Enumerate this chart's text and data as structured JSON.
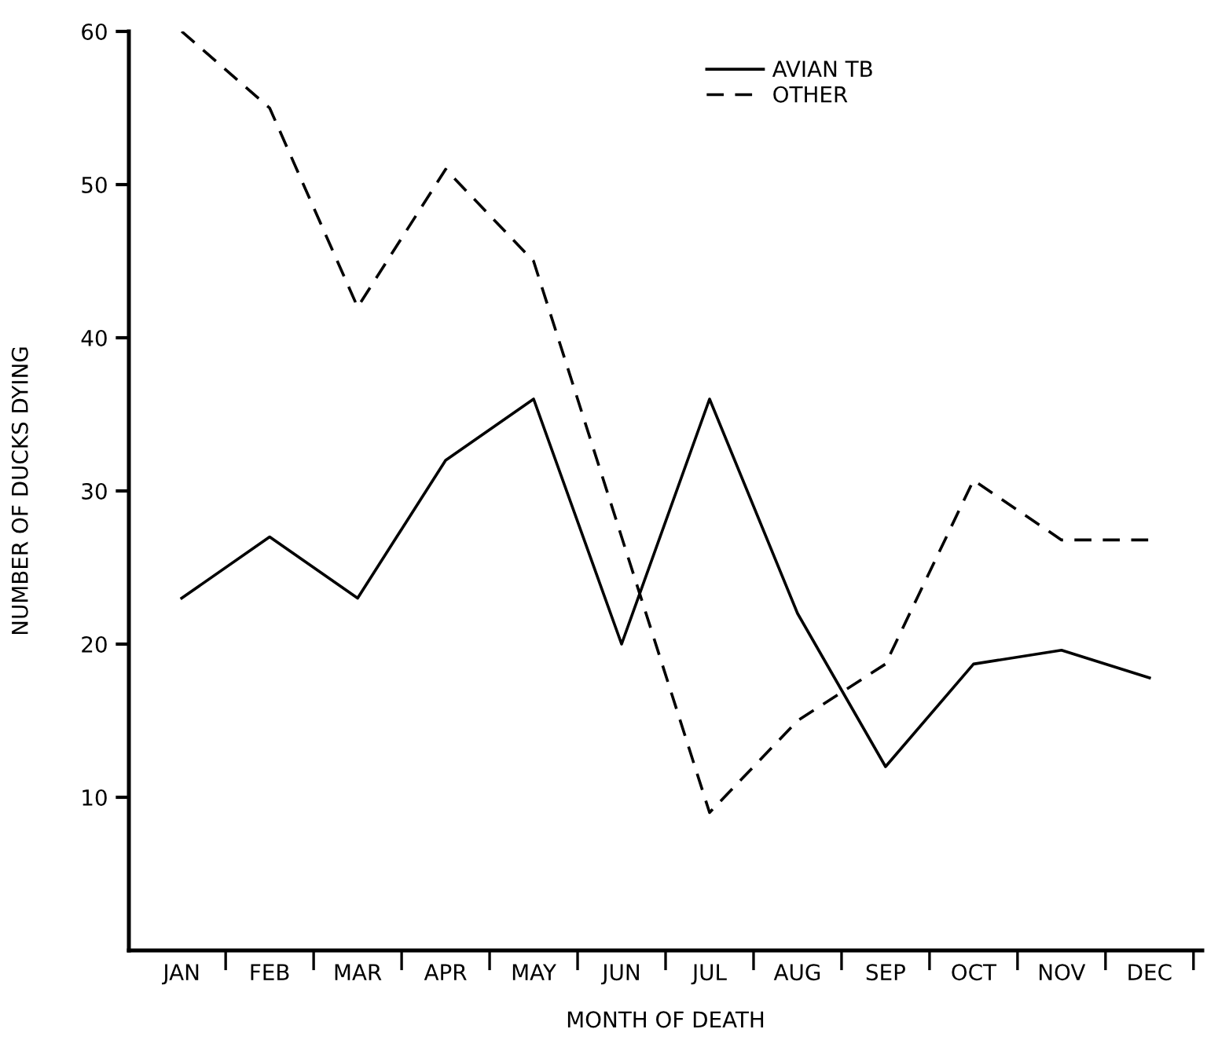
{
  "chart_data": {
    "type": "line",
    "xlabel": "MONTH OF DEATH",
    "ylabel": "NUMBER OF DUCKS DYING",
    "categories": [
      "JAN",
      "FEB",
      "MAR",
      "APR",
      "MAY",
      "JUN",
      "JUL",
      "AUG",
      "SEP",
      "OCT",
      "NOV",
      "DEC"
    ],
    "series": [
      {
        "name": "AVIAN TB",
        "color": "#000000",
        "line_style": "solid",
        "values": [
          23,
          27,
          23,
          32,
          36,
          20,
          36,
          22,
          12,
          18.7,
          19.6,
          17.8
        ]
      },
      {
        "name": "OTHER",
        "color": "#000000",
        "line_style": "dashed",
        "values": [
          60,
          55,
          42,
          51,
          45,
          27,
          9,
          15,
          18.7,
          30.7,
          26.8,
          26.8
        ]
      }
    ],
    "ylim": [
      0,
      60
    ],
    "yticks": [
      10,
      20,
      30,
      40,
      50,
      60
    ],
    "grid": false,
    "legend": "top right",
    "marker": "none"
  }
}
